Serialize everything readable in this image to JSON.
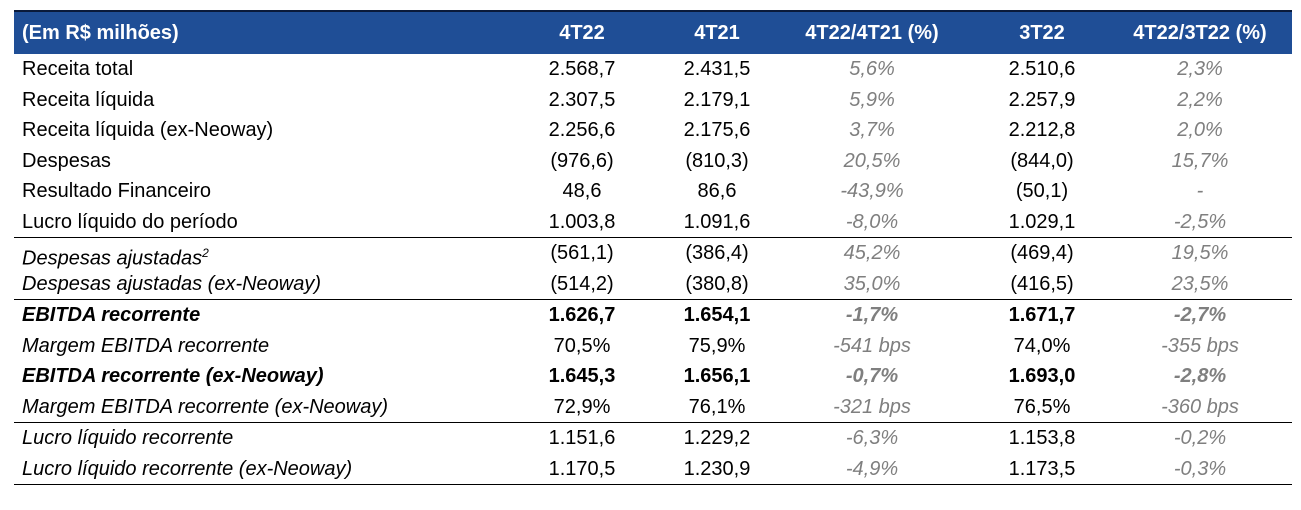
{
  "header": {
    "label": "(Em R$ milhões)",
    "col1": "4T22",
    "col2": "4T21",
    "col3": "4T22/4T21 (%)",
    "col4": "3T22",
    "col5": "4T22/3T22 (%)"
  },
  "rows": [
    {
      "label": "Receita total",
      "c1": "2.568,7",
      "c2": "2.431,5",
      "c3": "5,6%",
      "c4": "2.510,6",
      "c5": "2,3%"
    },
    {
      "label": "Receita líquida",
      "c1": "2.307,5",
      "c2": "2.179,1",
      "c3": "5,9%",
      "c4": "2.257,9",
      "c5": "2,2%"
    },
    {
      "label": "Receita líquida (ex-Neoway)",
      "c1": "2.256,6",
      "c2": "2.175,6",
      "c3": "3,7%",
      "c4": "2.212,8",
      "c5": "2,0%"
    },
    {
      "label": "Despesas",
      "c1": "(976,6)",
      "c2": "(810,3)",
      "c3": "20,5%",
      "c4": "(844,0)",
      "c5": "15,7%"
    },
    {
      "label": "Resultado Financeiro",
      "c1": "48,6",
      "c2": "86,6",
      "c3": "-43,9%",
      "c4": "(50,1)",
      "c5": "-"
    },
    {
      "label": "Lucro líquido do período",
      "c1": "1.003,8",
      "c2": "1.091,6",
      "c3": "-8,0%",
      "c4": "1.029,1",
      "c5": "-2,5%"
    },
    {
      "label": "Despesas ajustadas",
      "sup": "2",
      "c1": "(561,1)",
      "c2": "(386,4)",
      "c3": "45,2%",
      "c4": "(469,4)",
      "c5": "19,5%"
    },
    {
      "label": "Despesas ajustadas (ex-Neoway)",
      "c1": "(514,2)",
      "c2": "(380,8)",
      "c3": "35,0%",
      "c4": "(416,5)",
      "c5": "23,5%"
    },
    {
      "label": "EBITDA recorrente",
      "c1": "1.626,7",
      "c2": "1.654,1",
      "c3": "-1,7%",
      "c4": "1.671,7",
      "c5": "-2,7%"
    },
    {
      "label": "Margem EBITDA recorrente",
      "c1": "70,5%",
      "c2": "75,9%",
      "c3": "-541 bps",
      "c4": "74,0%",
      "c5": "-355 bps"
    },
    {
      "label": "EBITDA recorrente (ex-Neoway)",
      "c1": "1.645,3",
      "c2": "1.656,1",
      "c3": "-0,7%",
      "c4": "1.693,0",
      "c5": "-2,8%"
    },
    {
      "label": "Margem EBITDA recorrente (ex-Neoway)",
      "c1": "72,9%",
      "c2": "76,1%",
      "c3": "-321 bps",
      "c4": "76,5%",
      "c5": "-360 bps"
    },
    {
      "label": "Lucro líquido recorrente",
      "c1": "1.151,6",
      "c2": "1.229,2",
      "c3": "-6,3%",
      "c4": "1.153,8",
      "c5": "-0,2%"
    },
    {
      "label": "Lucro líquido recorrente (ex-Neoway)",
      "c1": "1.170,5",
      "c2": "1.230,9",
      "c3": "-4,9%",
      "c4": "1.173,5",
      "c5": "-0,3%"
    }
  ]
}
